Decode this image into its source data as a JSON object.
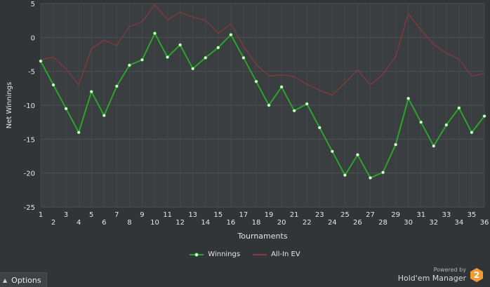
{
  "chart_data": {
    "type": "line",
    "xlabel": "Tournaments",
    "ylabel": "Net Winnings",
    "ylim": [
      -25,
      5
    ],
    "yticks": [
      5,
      0,
      -5,
      -10,
      -15,
      -20,
      -25
    ],
    "x": [
      1,
      2,
      3,
      4,
      5,
      6,
      7,
      8,
      9,
      10,
      11,
      12,
      13,
      14,
      15,
      16,
      17,
      18,
      19,
      20,
      21,
      22,
      23,
      24,
      25,
      26,
      27,
      28,
      29,
      30,
      31,
      32,
      33,
      34,
      35,
      36
    ],
    "xlim": [
      1,
      36
    ],
    "grid": true,
    "legend_position": "bottom",
    "series": [
      {
        "name": "Winnings",
        "color": "#2aa52a",
        "markers": true,
        "values": [
          -3.5,
          -7,
          -10.5,
          -14,
          -8,
          -11.5,
          -7.2,
          -4.1,
          -3.3,
          0.6,
          -2.9,
          -1.1,
          -4.6,
          -3,
          -1.5,
          0.4,
          -3,
          -6.5,
          -10,
          -7.3,
          -10.8,
          -9.8,
          -13.3,
          -16.8,
          -20.3,
          -17.3,
          -20.7,
          -19.9,
          -15.8,
          -9,
          -12.5,
          -16,
          -12.9,
          -10.4,
          -14,
          -11.6
        ]
      },
      {
        "name": "All-In EV",
        "color": "#8b3a3a",
        "markers": false,
        "values": [
          -3.3,
          -2.9,
          -4.6,
          -7,
          -1.7,
          -0.4,
          -1.2,
          1.6,
          2.3,
          4.8,
          2.6,
          3.7,
          3,
          2.5,
          0.6,
          2,
          -1.3,
          -4,
          -5.7,
          -5.5,
          -5.8,
          -6.9,
          -7.8,
          -8.5,
          -6.7,
          -4.8,
          -7,
          -5.4,
          -2.8,
          3.5,
          1.1,
          -1,
          -2.3,
          -3.2,
          -5.7,
          -5.3
        ]
      }
    ]
  },
  "footer": {
    "options_label": "Options",
    "powered_by": "Powered by",
    "brand_name": "Hold'em Manager",
    "brand_logo": "2"
  }
}
